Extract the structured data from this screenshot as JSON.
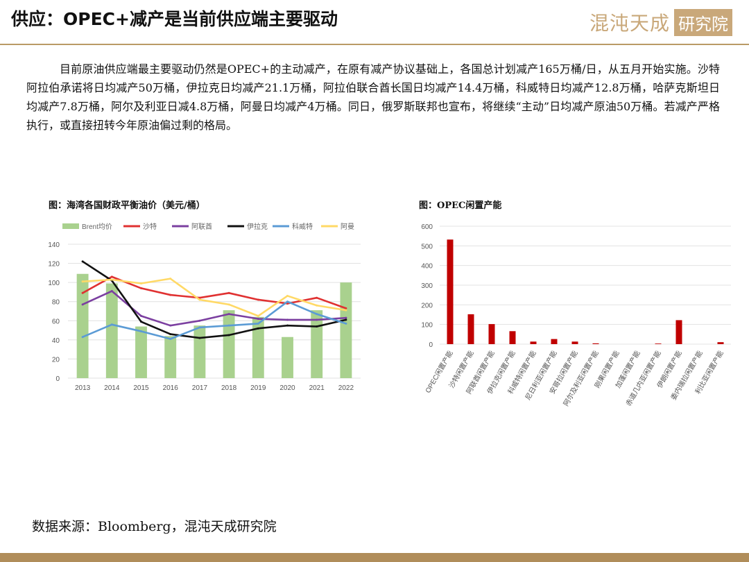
{
  "header": {
    "title": "供应：OPEC+减产是当前供应端主要驱动",
    "logo_text": "混沌天成",
    "logo_box": "研究院"
  },
  "paragraph": "目前原油供应端最主要驱动仍然是OPEC+的主动减产，在原有减产协议基础上，各国总计划减产165万桶/日，从五月开始实施。沙特阿拉伯承诺将日均减产50万桶，伊拉克日均减产21.1万桶，阿拉伯联合酋长国日均减产14.4万桶，科威特日均减产12.8万桶，哈萨克斯坦日均减产7.8万桶，阿尔及利亚日减4.8万桶，阿曼日均减产4万桶。同日，俄罗斯联邦也宣布，将继续“主动”日均减产原油50万桶。若减产严格执行，或直接扭转今年原油偏过剩的格局。",
  "source": "数据来源：Bloomberg，混沌天成研究院",
  "chart_data": [
    {
      "type": "bar+line",
      "caption": "图：海湾各国财政平衡油价（美元/桶）",
      "categories": [
        "2013",
        "2014",
        "2015",
        "2016",
        "2017",
        "2018",
        "2019",
        "2020",
        "2021",
        "2022"
      ],
      "ylim": [
        0,
        140
      ],
      "yticks": [
        0,
        20,
        40,
        60,
        80,
        100,
        120,
        140
      ],
      "grid": true,
      "legend_position": "top",
      "bar_series": {
        "name": "Brent均价",
        "color": "#a9d18e",
        "values": [
          109,
          99,
          54,
          44,
          55,
          71,
          64,
          43,
          71,
          100
        ]
      },
      "line_series": [
        {
          "name": "沙特",
          "color": "#e03131",
          "values": [
            89,
            106,
            94,
            87,
            84,
            89,
            82,
            78,
            84,
            73
          ]
        },
        {
          "name": "阿联酋",
          "color": "#7b3fa0",
          "values": [
            77,
            91,
            65,
            55,
            60,
            67,
            62,
            61,
            61,
            63
          ]
        },
        {
          "name": "伊拉克",
          "color": "#111111",
          "values": [
            122,
            102,
            59,
            46,
            42,
            45,
            52,
            55,
            54,
            61
          ]
        },
        {
          "name": "科威特",
          "color": "#5b9bd5",
          "values": [
            43,
            56,
            49,
            41,
            53,
            55,
            57,
            80,
            67,
            57
          ]
        },
        {
          "name": "阿曼",
          "color": "#ffd966",
          "values": [
            101,
            103,
            99,
            104,
            82,
            77,
            65,
            86,
            76,
            71
          ]
        }
      ]
    },
    {
      "type": "bar",
      "caption": "图：OPEC闲置产能",
      "color": "#c00000",
      "categories": [
        "OPEC闲置产能",
        "沙特闲置产能",
        "阿联酋闲置产能",
        "伊拉克闲置产能",
        "科威特闲置产能",
        "尼日利亚闲置产能",
        "安哥拉闲置产能",
        "阿尔及利亚闲置产能",
        "刚果闲置产能",
        "加蓬闲置产能",
        "赤道几内亚闲置产能",
        "伊朗闲置产能",
        "委内瑞拉闲置产能",
        "利比亚闲置产能"
      ],
      "values": [
        532,
        152,
        102,
        66,
        13,
        26,
        13,
        4,
        0,
        0,
        3,
        122,
        0,
        10
      ],
      "ylim": [
        0,
        600
      ],
      "yticks": [
        0,
        100,
        200,
        300,
        400,
        500,
        600
      ],
      "grid": true
    }
  ]
}
